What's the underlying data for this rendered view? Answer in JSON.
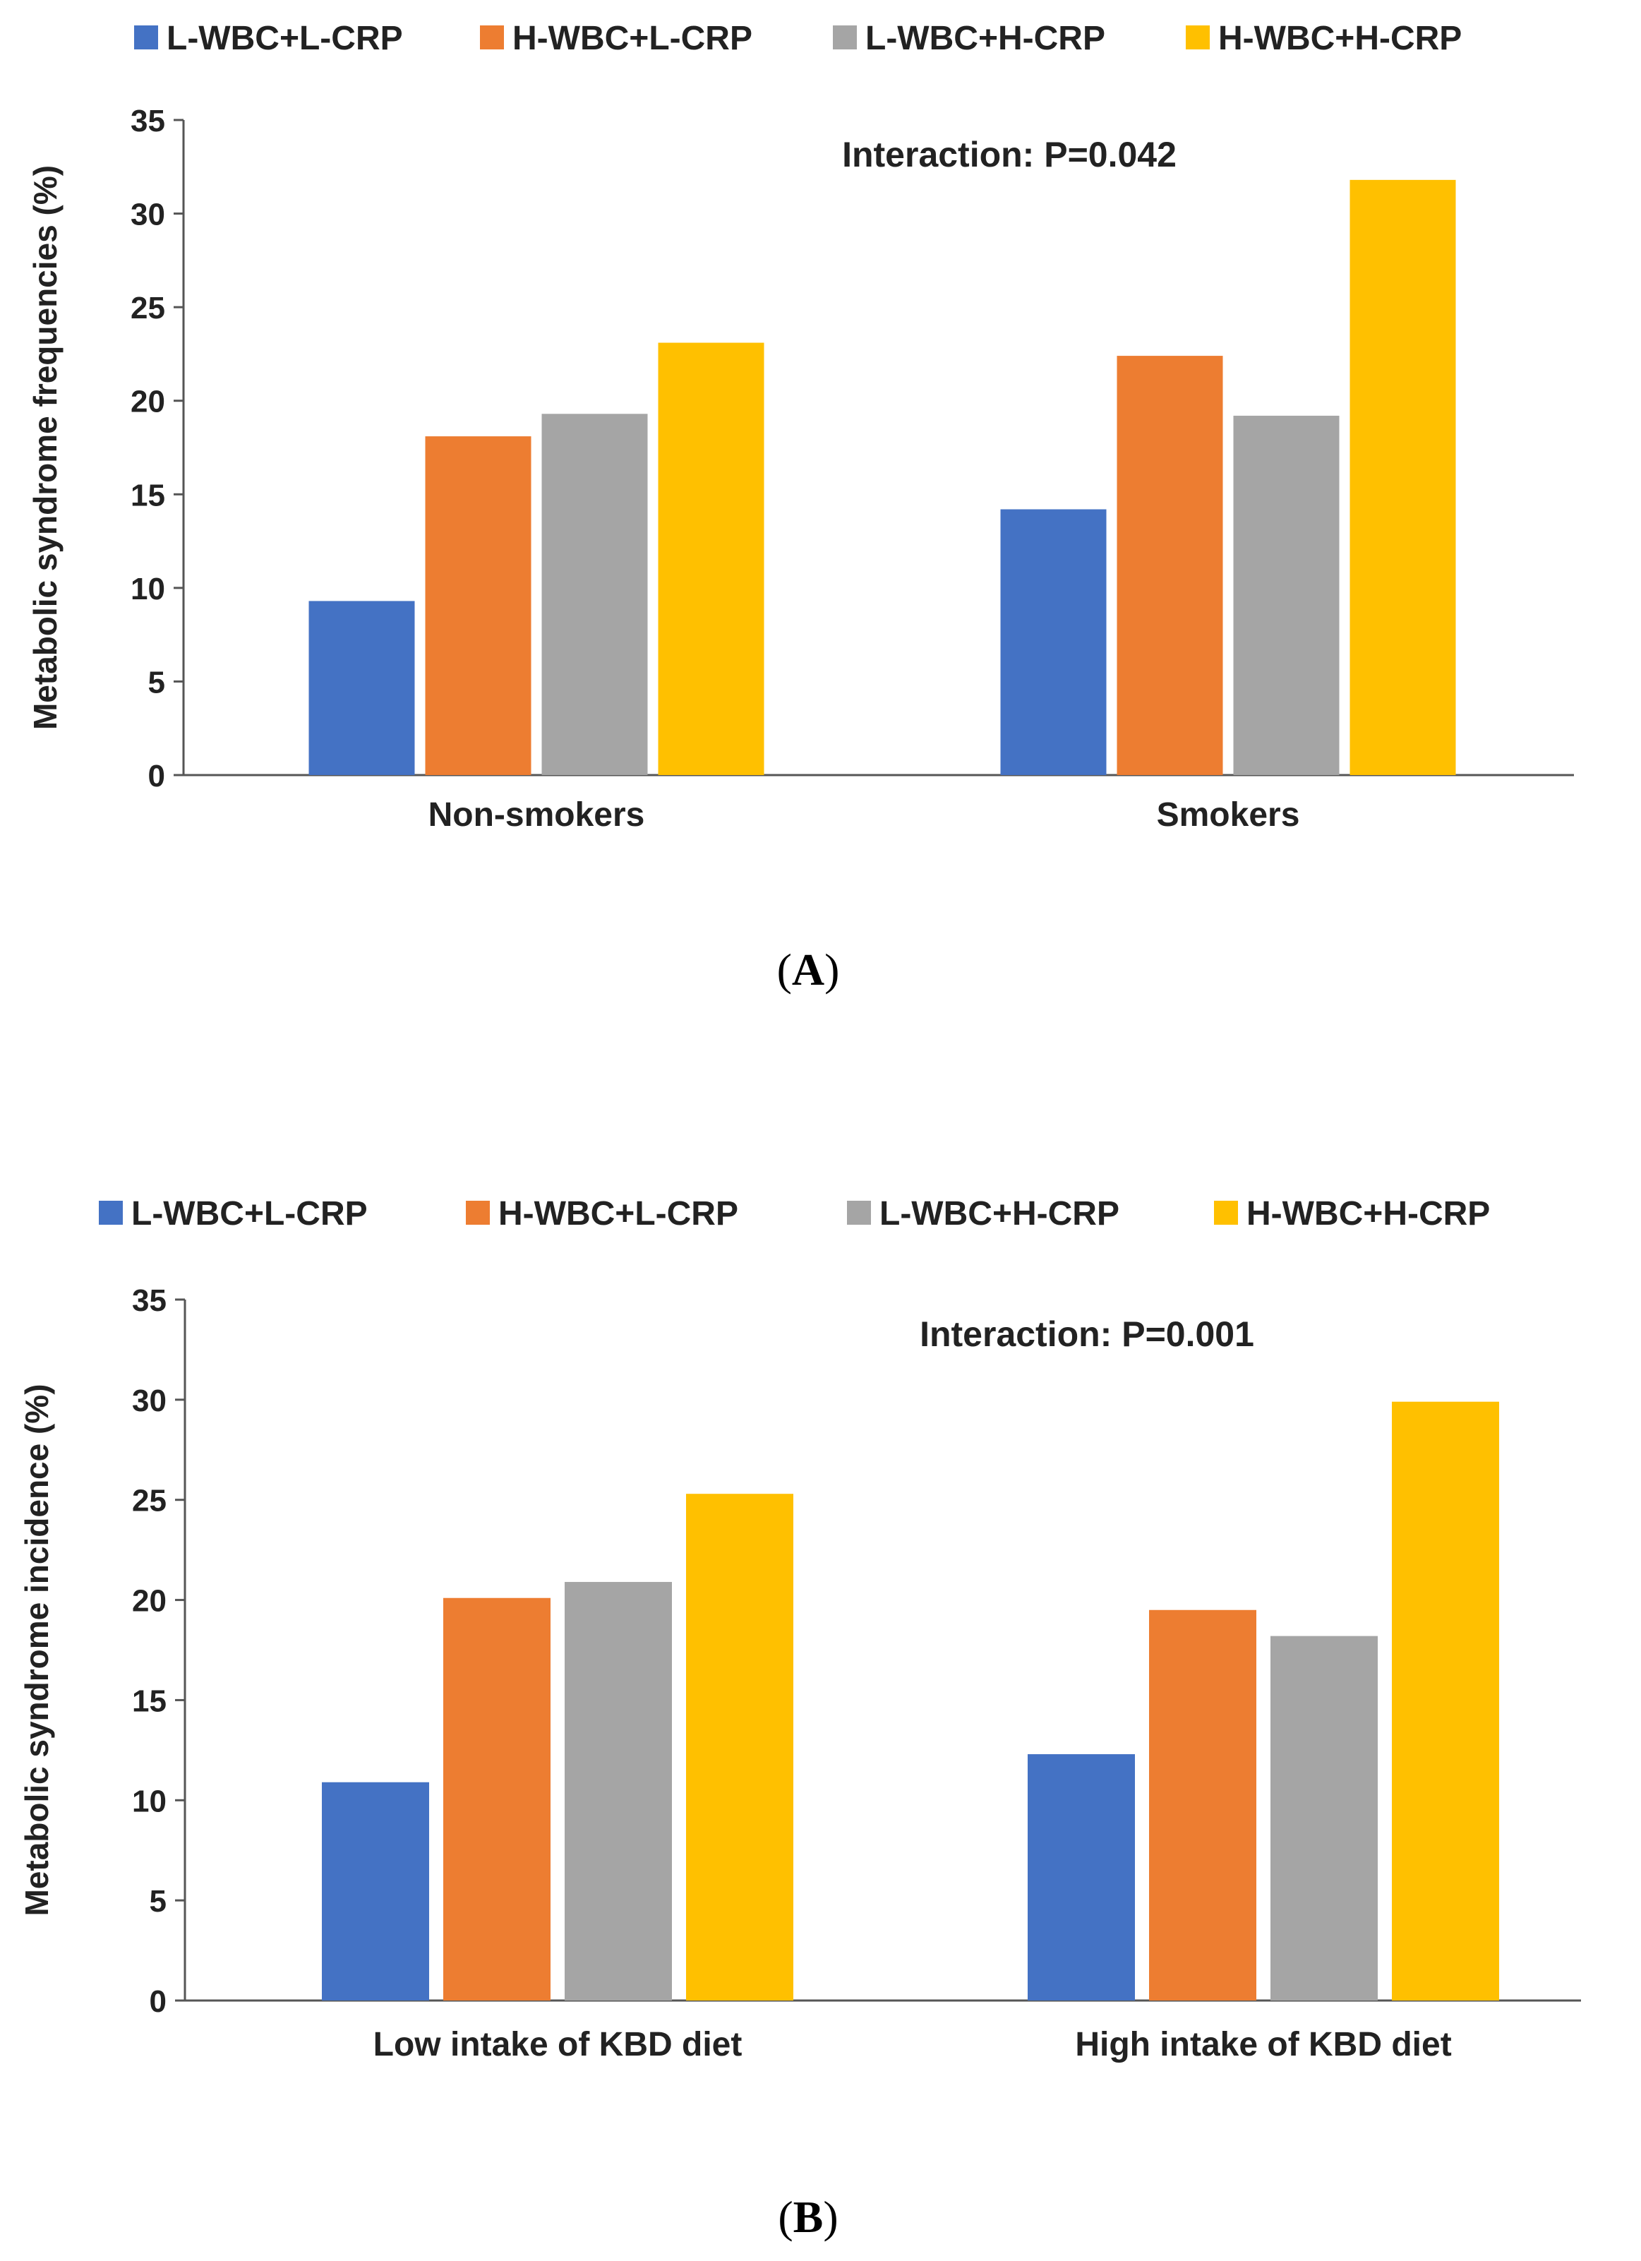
{
  "colors": {
    "L-WBC+L-CRP": "#4472C4",
    "H-WBC+L-CRP": "#ED7D31",
    "L-WBC+H-CRP": "#A5A5A5",
    "H-WBC+H-CRP": "#FFC000"
  },
  "chart_data": [
    {
      "type": "bar",
      "panel_label": "A",
      "title": "",
      "categories": [
        "Non-smokers",
        "Smokers"
      ],
      "series": [
        {
          "name": "L-WBC+L-CRP",
          "values": [
            9.3,
            14.2
          ]
        },
        {
          "name": "H-WBC+L-CRP",
          "values": [
            18.1,
            22.4
          ]
        },
        {
          "name": "L-WBC+H-CRP",
          "values": [
            19.3,
            19.2
          ]
        },
        {
          "name": "H-WBC+H-CRP",
          "values": [
            23.1,
            31.8
          ]
        }
      ],
      "xlabel": "",
      "ylabel": "Metabolic syndrome frequencies (%)",
      "ylim": [
        0,
        35
      ],
      "yticks": [
        0,
        5,
        10,
        15,
        20,
        25,
        30,
        35
      ],
      "annotation": "Interaction: P=0.042",
      "legend": "top",
      "grid": false
    },
    {
      "type": "bar",
      "panel_label": "B",
      "title": "",
      "categories": [
        "Low intake of KBD diet",
        "High intake of KBD diet"
      ],
      "series": [
        {
          "name": "L-WBC+L-CRP",
          "values": [
            10.9,
            12.3
          ]
        },
        {
          "name": "H-WBC+L-CRP",
          "values": [
            20.1,
            19.5
          ]
        },
        {
          "name": "L-WBC+H-CRP",
          "values": [
            20.9,
            18.2
          ]
        },
        {
          "name": "H-WBC+H-CRP",
          "values": [
            25.3,
            29.9
          ]
        }
      ],
      "xlabel": "",
      "ylabel": "Metabolic syndrome incidence (%)",
      "ylim": [
        0,
        35
      ],
      "yticks": [
        0,
        5,
        10,
        15,
        20,
        25,
        30,
        35
      ],
      "annotation": "Interaction: P=0.001",
      "legend": "top",
      "grid": false
    }
  ]
}
